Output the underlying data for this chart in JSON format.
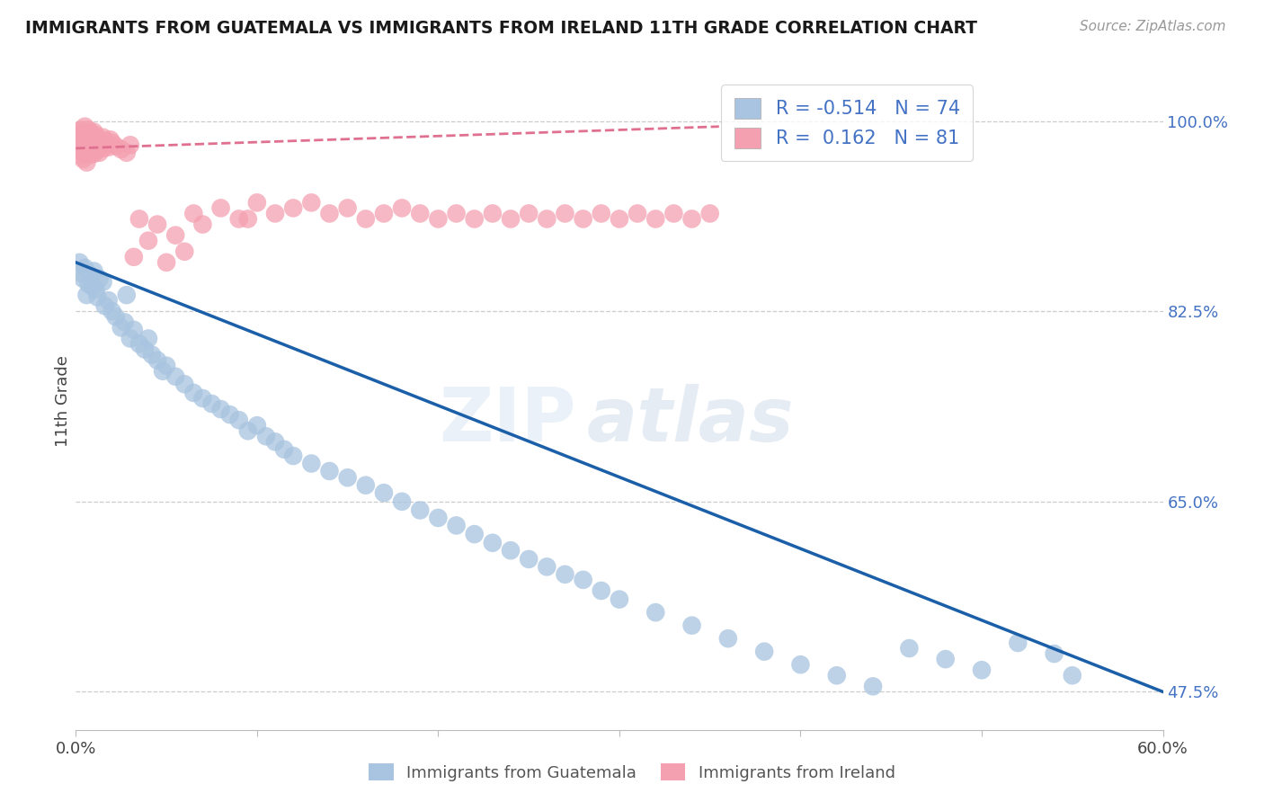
{
  "title": "IMMIGRANTS FROM GUATEMALA VS IMMIGRANTS FROM IRELAND 11TH GRADE CORRELATION CHART",
  "source": "Source: ZipAtlas.com",
  "ylabel": "11th Grade",
  "xlim": [
    0.0,
    0.6
  ],
  "ylim": [
    0.44,
    1.045
  ],
  "yticks_right": [
    0.475,
    0.65,
    0.825,
    1.0
  ],
  "yticklabels_right": [
    "47.5%",
    "65.0%",
    "82.5%",
    "100.0%"
  ],
  "guatemala_color": "#a8c4e0",
  "ireland_color": "#f4a0b0",
  "trendline_blue": "#1a5fa8",
  "trendline_pink": "#e07090",
  "legend_R_blue": "-0.514",
  "legend_N_blue": "74",
  "legend_R_pink": "0.162",
  "legend_N_pink": "81",
  "guatemala_points_x": [
    0.002,
    0.003,
    0.004,
    0.005,
    0.006,
    0.007,
    0.008,
    0.009,
    0.01,
    0.011,
    0.012,
    0.013,
    0.015,
    0.016,
    0.018,
    0.02,
    0.022,
    0.025,
    0.027,
    0.03,
    0.032,
    0.035,
    0.038,
    0.04,
    0.042,
    0.045,
    0.048,
    0.05,
    0.055,
    0.06,
    0.065,
    0.07,
    0.075,
    0.08,
    0.085,
    0.09,
    0.095,
    0.1,
    0.105,
    0.11,
    0.115,
    0.12,
    0.13,
    0.14,
    0.15,
    0.16,
    0.17,
    0.18,
    0.19,
    0.2,
    0.21,
    0.22,
    0.23,
    0.24,
    0.25,
    0.26,
    0.27,
    0.28,
    0.29,
    0.3,
    0.32,
    0.34,
    0.36,
    0.38,
    0.4,
    0.42,
    0.44,
    0.46,
    0.48,
    0.5,
    0.52,
    0.54,
    0.55,
    0.028
  ],
  "guatemala_points_y": [
    0.87,
    0.86,
    0.855,
    0.865,
    0.84,
    0.85,
    0.858,
    0.848,
    0.862,
    0.845,
    0.838,
    0.855,
    0.852,
    0.83,
    0.835,
    0.825,
    0.82,
    0.81,
    0.815,
    0.8,
    0.808,
    0.795,
    0.79,
    0.8,
    0.785,
    0.78,
    0.77,
    0.775,
    0.765,
    0.758,
    0.75,
    0.745,
    0.74,
    0.735,
    0.73,
    0.725,
    0.715,
    0.72,
    0.71,
    0.705,
    0.698,
    0.692,
    0.685,
    0.678,
    0.672,
    0.665,
    0.658,
    0.65,
    0.642,
    0.635,
    0.628,
    0.62,
    0.612,
    0.605,
    0.597,
    0.59,
    0.583,
    0.578,
    0.568,
    0.56,
    0.548,
    0.536,
    0.524,
    0.512,
    0.5,
    0.49,
    0.48,
    0.515,
    0.505,
    0.495,
    0.52,
    0.51,
    0.49,
    0.84
  ],
  "ireland_points_x": [
    0.001,
    0.002,
    0.003,
    0.003,
    0.004,
    0.004,
    0.005,
    0.005,
    0.005,
    0.006,
    0.006,
    0.007,
    0.007,
    0.007,
    0.008,
    0.008,
    0.008,
    0.009,
    0.009,
    0.01,
    0.01,
    0.01,
    0.011,
    0.011,
    0.012,
    0.012,
    0.013,
    0.013,
    0.014,
    0.015,
    0.015,
    0.016,
    0.017,
    0.018,
    0.019,
    0.02,
    0.022,
    0.025,
    0.028,
    0.03,
    0.032,
    0.035,
    0.04,
    0.045,
    0.05,
    0.055,
    0.06,
    0.065,
    0.07,
    0.08,
    0.09,
    0.1,
    0.11,
    0.12,
    0.13,
    0.14,
    0.15,
    0.16,
    0.17,
    0.18,
    0.19,
    0.2,
    0.21,
    0.22,
    0.23,
    0.24,
    0.25,
    0.26,
    0.27,
    0.28,
    0.29,
    0.3,
    0.31,
    0.32,
    0.33,
    0.34,
    0.35,
    0.095,
    0.003,
    0.004,
    0.006
  ],
  "ireland_points_y": [
    0.99,
    0.985,
    0.992,
    0.98,
    0.988,
    0.975,
    0.995,
    0.983,
    0.97,
    0.988,
    0.978,
    0.992,
    0.982,
    0.972,
    0.989,
    0.979,
    0.969,
    0.985,
    0.975,
    0.99,
    0.98,
    0.97,
    0.987,
    0.977,
    0.984,
    0.974,
    0.981,
    0.971,
    0.978,
    0.985,
    0.975,
    0.982,
    0.979,
    0.976,
    0.983,
    0.98,
    0.977,
    0.974,
    0.971,
    0.978,
    0.875,
    0.91,
    0.89,
    0.905,
    0.87,
    0.895,
    0.88,
    0.915,
    0.905,
    0.92,
    0.91,
    0.925,
    0.915,
    0.92,
    0.925,
    0.915,
    0.92,
    0.91,
    0.915,
    0.92,
    0.915,
    0.91,
    0.915,
    0.91,
    0.915,
    0.91,
    0.915,
    0.91,
    0.915,
    0.91,
    0.915,
    0.91,
    0.915,
    0.91,
    0.915,
    0.91,
    0.915,
    0.91,
    0.968,
    0.965,
    0.962
  ],
  "blue_trend_x0": 0.0,
  "blue_trend_y0": 0.87,
  "blue_trend_x1": 0.6,
  "blue_trend_y1": 0.475,
  "pink_trend_x0": 0.0,
  "pink_trend_y0": 0.975,
  "pink_trend_x1": 0.355,
  "pink_trend_y1": 0.995
}
